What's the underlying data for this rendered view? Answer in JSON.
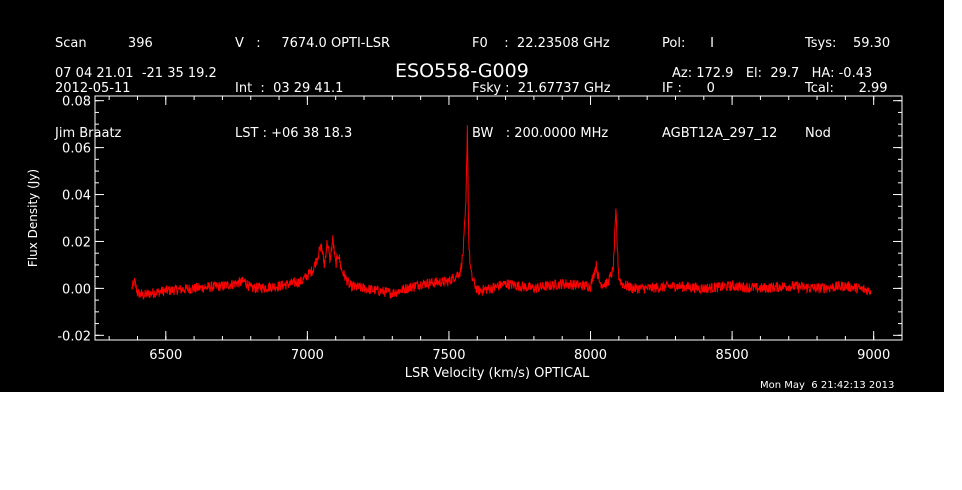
{
  "header": {
    "col1": [
      "Scan          396",
      "2012-05-11",
      "Jim Braatz"
    ],
    "col2": [
      "V   :     7674.0 OPTI-LSR",
      "Int  :  03 29 41.1",
      "LST : +06 38 18.3"
    ],
    "col3": [
      "F0    :  22.23508 GHz",
      "Fsky :  21.67737 GHz",
      "BW   : 200.0000 MHz"
    ],
    "col4": [
      "Pol:      I",
      "IF :      0",
      "AGBT12A_297_12"
    ],
    "col5": [
      "Tsys:    59.30",
      "Tcal:      2.99",
      "Nod"
    ],
    "coords": "07 04 21.01  -21 35 19.2",
    "source": "ESO558-G009",
    "pointing": "Az: 172.9   El:  29.7   HA: -0.43",
    "timestamp": "Mon May  6 21:42:13 2013"
  },
  "chart_data": {
    "type": "line",
    "xlabel": "LSR Velocity (km/s) OPTICAL",
    "ylabel": "Flux Density (Jy)",
    "xlim": [
      6250,
      9100
    ],
    "ylim": [
      -0.022,
      0.082
    ],
    "xticks": [
      6500,
      7000,
      7500,
      8000,
      8500,
      9000
    ],
    "xtick_labels": [
      "6500",
      "7000",
      "7500",
      "8000",
      "8500",
      "9000"
    ],
    "yticks": [
      -0.02,
      0.0,
      0.02,
      0.04,
      0.06,
      0.08
    ],
    "ytick_labels": [
      "-0.02",
      "0.00",
      "0.02",
      "0.04",
      "0.06",
      "0.08"
    ],
    "series_color": "#ff0000",
    "series": [
      {
        "x": [
          6380,
          6390,
          6400,
          6420,
          6450,
          6500,
          6600,
          6700,
          6780,
          6800,
          6900,
          6980,
          7020,
          7040,
          7050,
          7060,
          7070,
          7080,
          7090,
          7100,
          7110,
          7120,
          7150,
          7200,
          7300,
          7400,
          7500,
          7540,
          7550,
          7560,
          7565,
          7570,
          7575,
          7580,
          7600,
          7650,
          7700,
          7800,
          7900,
          8000,
          8020,
          8030,
          8040,
          8060,
          8080,
          8090,
          8095,
          8100,
          8110,
          8150,
          8200,
          8300,
          8400,
          8500,
          8600,
          8700,
          8800,
          8900,
          8990
        ],
        "y": [
          0.0,
          0.003,
          -0.002,
          -0.003,
          -0.002,
          -0.001,
          0.0,
          0.001,
          0.003,
          0.0,
          0.001,
          0.003,
          0.008,
          0.015,
          0.018,
          0.01,
          0.02,
          0.012,
          0.021,
          0.01,
          0.015,
          0.008,
          0.001,
          0.0,
          -0.002,
          0.002,
          0.003,
          0.007,
          0.015,
          0.036,
          0.07,
          0.02,
          0.01,
          0.005,
          -0.001,
          0.0,
          0.002,
          0.0,
          0.002,
          0.001,
          0.01,
          0.003,
          0.002,
          0.002,
          0.008,
          0.033,
          0.016,
          0.005,
          0.002,
          0.0,
          0.0,
          0.001,
          0.0,
          0.001,
          0.0,
          0.001,
          0.0,
          0.001,
          -0.001
        ]
      }
    ]
  }
}
